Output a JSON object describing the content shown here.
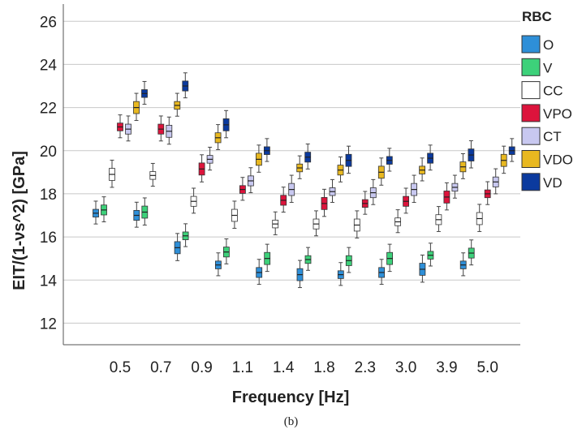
{
  "caption": "(b)",
  "chart_data": {
    "type": "boxplot",
    "xlabel": "Frequency [Hz]",
    "ylabel": "EIT/(1-νs^2) [GPa]",
    "ylim": [
      11,
      26.8
    ],
    "yticks": [
      12,
      14,
      16,
      18,
      20,
      22,
      24,
      26
    ],
    "grid": true,
    "legend": {
      "title": "RBC",
      "placement": "right"
    },
    "categories": [
      "0.5",
      "0.7",
      "0.9",
      "1.1",
      "1.4",
      "1.8",
      "2.3",
      "3.0",
      "3.9",
      "5.0"
    ],
    "series": [
      {
        "name": "O",
        "color": "#2E8FD8",
        "values": [
          17.1,
          17.0,
          15.5,
          14.7,
          14.35,
          14.25,
          14.25,
          14.35,
          14.5,
          14.7
        ]
      },
      {
        "name": "V",
        "color": "#3DD17A",
        "values": [
          17.25,
          17.15,
          16.05,
          15.3,
          15.0,
          14.95,
          14.9,
          15.0,
          15.15,
          15.25
        ]
      },
      {
        "name": "CC",
        "color": "#FFFFFF",
        "values": [
          18.9,
          18.85,
          17.65,
          17.0,
          16.6,
          16.6,
          16.55,
          16.7,
          16.8,
          16.85
        ]
      },
      {
        "name": "VPO",
        "color": "#DC143C",
        "values": [
          21.1,
          21.0,
          19.15,
          18.2,
          17.7,
          17.55,
          17.55,
          17.65,
          17.85,
          18.0
        ]
      },
      {
        "name": "CT",
        "color": "#C8C8F0",
        "values": [
          21.0,
          20.9,
          19.6,
          18.6,
          18.2,
          18.1,
          18.05,
          18.2,
          18.3,
          18.55
        ]
      },
      {
        "name": "VDO",
        "color": "#E8B820",
        "values": [
          22.0,
          22.1,
          20.6,
          19.6,
          19.2,
          19.1,
          19.0,
          19.1,
          19.25,
          19.55
        ]
      },
      {
        "name": "VD",
        "color": "#0B3A9E",
        "values": [
          22.65,
          23.0,
          21.2,
          20.0,
          19.7,
          19.55,
          19.55,
          19.65,
          19.8,
          20.0
        ]
      }
    ]
  }
}
